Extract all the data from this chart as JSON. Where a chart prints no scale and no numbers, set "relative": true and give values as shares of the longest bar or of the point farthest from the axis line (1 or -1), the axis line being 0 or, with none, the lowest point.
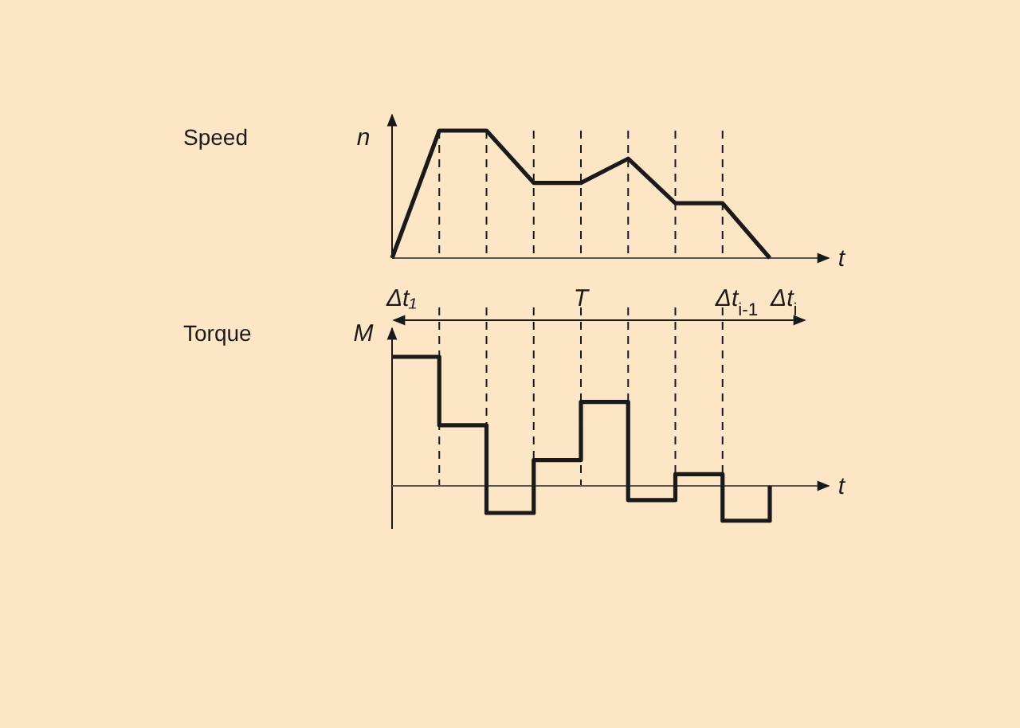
{
  "chart_data": [
    {
      "type": "line",
      "grid": "x",
      "ylabel": "n",
      "xlabel": "t",
      "relative": true,
      "categories": [
        null,
        null,
        null,
        null,
        null,
        null,
        null,
        null,
        null
      ],
      "series": [
        {
          "color": "#1a1a1a",
          "values": [
            0,
            1,
            1,
            0.59,
            0.59,
            0.78,
            0.43,
            0.43,
            0
          ]
        }
      ],
      "annotations": [
        "Speed",
        "Δt₁",
        "T",
        "Δt$_{i-1}$",
        "Δt$_{i}$"
      ]
    },
    {
      "type": "step",
      "grid": "x",
      "annotations": [
        "Torque"
      ],
      "ylabel": "M",
      "xlabel": "t",
      "relative": true,
      "categories": [
        null,
        null,
        null,
        null,
        null,
        null,
        null,
        null,
        null
      ],
      "series": [
        {
          "color": "#1a1a1a",
          "values": [
            1,
            0.47,
            -0.21,
            0.2,
            0.65,
            -0.11,
            0.09,
            -0.27,
            0
          ]
        }
      ]
    }
  ]
}
